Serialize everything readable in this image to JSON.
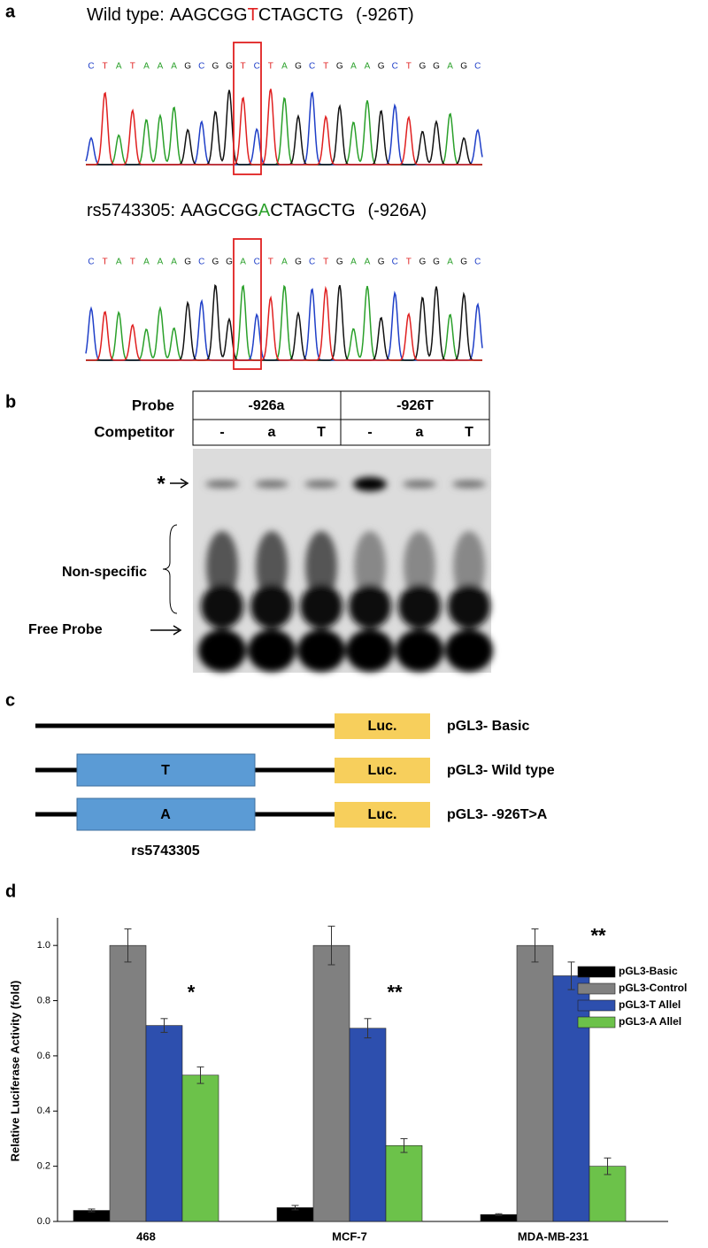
{
  "panel_a": {
    "label": "a",
    "tracks": [
      {
        "name": "Wild type:",
        "seq_before": "AAGCGG",
        "snp": "T",
        "snp_color": "#e02020",
        "seq_after": "CTAGCTG",
        "note": "(-926T)",
        "bases": [
          "C",
          "T",
          "A",
          "T",
          "A",
          "A",
          "A",
          "G",
          "C",
          "G",
          "G",
          "T",
          "C",
          "T",
          "A",
          "G",
          "C",
          "T",
          "G",
          "A",
          "A",
          "G",
          "C",
          "T",
          "G",
          "G",
          "A",
          "G",
          "C"
        ]
      },
      {
        "name": "rs5743305:",
        "seq_before": "AAGCGG",
        "snp": "A",
        "snp_color": "#2aa02a",
        "seq_after": "CTAGCTG",
        "note": "(-926A)",
        "bases": [
          "C",
          "T",
          "A",
          "T",
          "A",
          "A",
          "A",
          "G",
          "C",
          "G",
          "G",
          "A",
          "C",
          "T",
          "A",
          "G",
          "C",
          "T",
          "G",
          "A",
          "A",
          "G",
          "C",
          "T",
          "G",
          "G",
          "A",
          "G",
          "C"
        ]
      }
    ]
  },
  "panel_b": {
    "label": "b",
    "table": {
      "row_labels": [
        "Probe",
        "Competitor"
      ],
      "probes": [
        "-926a",
        "-926T"
      ],
      "competitors": [
        "-",
        "a",
        "T",
        "-",
        "a",
        "T"
      ]
    },
    "gel_labels": {
      "band": "*",
      "nonspecific": "Non-specific",
      "free": "Free Probe"
    }
  },
  "panel_c": {
    "label": "c",
    "reporter": "Luc.",
    "constructs": [
      {
        "name": "pGL3- Basic"
      },
      {
        "name": "pGL3- Wild type",
        "insert": "T"
      },
      {
        "name": "pGL3- -926T>A",
        "insert": "A"
      }
    ],
    "snp_label": "rs5743305"
  },
  "chart_data": {
    "type": "bar",
    "panel_label": "d",
    "ylabel": "Relative Luciferase Activity (fold)",
    "categories": [
      "468",
      "MCF-7",
      "MDA-MB-231"
    ],
    "series": [
      {
        "name": "pGL3-Basic",
        "color": "#000000",
        "values": [
          0.04,
          0.05,
          0.025
        ],
        "errors": [
          0.005,
          0.008,
          0.003
        ]
      },
      {
        "name": "pGL3-Control",
        "color": "#808080",
        "values": [
          1.0,
          1.0,
          1.0
        ],
        "errors": [
          0.06,
          0.07,
          0.06
        ]
      },
      {
        "name": "pGL3-T Allel",
        "color": "#2d4fae",
        "values": [
          0.71,
          0.7,
          0.89
        ],
        "errors": [
          0.025,
          0.035,
          0.05
        ]
      },
      {
        "name": "pGL3-A Allel",
        "color": "#6cc24a",
        "values": [
          0.53,
          0.275,
          0.2
        ],
        "errors": [
          0.03,
          0.025,
          0.03
        ]
      }
    ],
    "annotations": [
      "*",
      "**",
      "**"
    ],
    "ylim": [
      0,
      1.1
    ],
    "yticks": [
      {
        "value": 0,
        "label": "0.0"
      },
      0.2,
      0.4,
      0.6,
      0.8,
      {
        "value": 1,
        "label": "1.0"
      }
    ],
    "legend": "right"
  }
}
